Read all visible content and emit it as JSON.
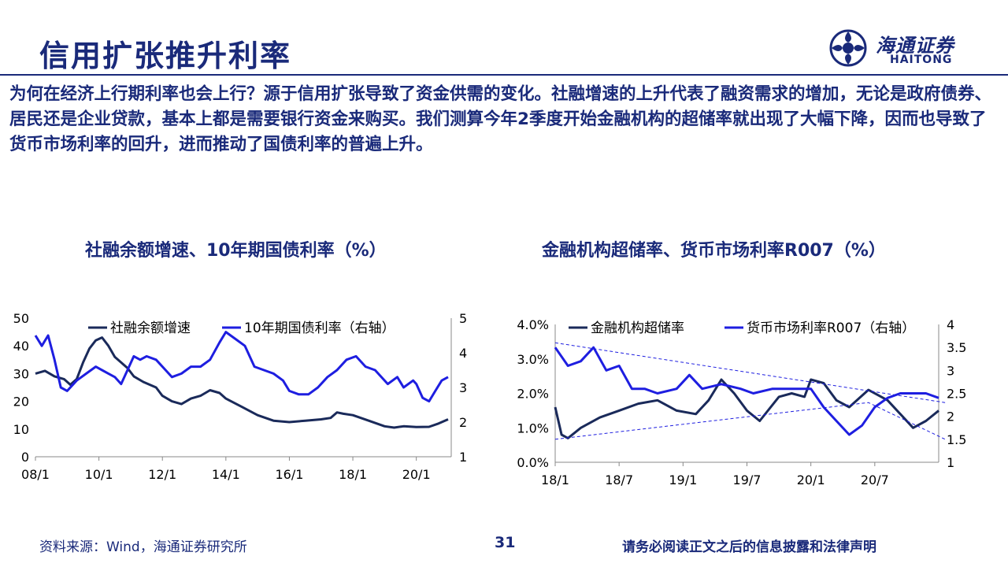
{
  "header": {
    "title": "信用扩张推升利率",
    "logo": {
      "cn": "海通证券",
      "en": "HAITONG",
      "icon": "haitong-logo-icon",
      "color": "#1a2a7a"
    }
  },
  "body_text": "为何在经济上行期利率也会上行？源于信用扩张导致了资金供需的变化。社融增速的上升代表了融资需求的增加，无论是政府债券、居民还是企业贷款，基本上都是需要银行资金来购买。我们测算今年2季度开始金融机构的超储率就出现了大幅下降，因而也导致了货币市场利率的回升，进而推动了国债利率的普遍上升。",
  "chart_titles": {
    "left": "社融余额增速、10年期国债利率（%）",
    "right": "金融机构超储率、货币市场利率R007（%）"
  },
  "colors": {
    "dark_series": "#1a2a5a",
    "light_series": "#1e1ee0",
    "text": "#1a2a7a"
  },
  "chart_data": [
    {
      "type": "line",
      "x_ticks": [
        "08/1",
        "10/1",
        "12/1",
        "14/1",
        "16/1",
        "18/1",
        "20/1"
      ],
      "y_left_ticks": [
        "0",
        "10",
        "20",
        "30",
        "40",
        "50"
      ],
      "y_right_ticks": [
        "1",
        "2",
        "3",
        "4",
        "5"
      ],
      "ylim_left": [
        0,
        50
      ],
      "ylim_right": [
        1,
        5
      ],
      "x_range": [
        2008.0,
        2021.1
      ],
      "legend_position": "top",
      "grid": false,
      "series": [
        {
          "name": "社融余额增速",
          "axis": "left",
          "points": [
            [
              2008.0,
              30
            ],
            [
              2008.3,
              31
            ],
            [
              2008.6,
              29
            ],
            [
              2008.9,
              28
            ],
            [
              2009.1,
              26
            ],
            [
              2009.3,
              28
            ],
            [
              2009.5,
              34
            ],
            [
              2009.7,
              39
            ],
            [
              2009.9,
              42
            ],
            [
              2010.1,
              43
            ],
            [
              2010.3,
              40
            ],
            [
              2010.5,
              36
            ],
            [
              2010.7,
              34
            ],
            [
              2010.9,
              32
            ],
            [
              2011.1,
              29
            ],
            [
              2011.4,
              27
            ],
            [
              2011.8,
              25
            ],
            [
              2012.0,
              22
            ],
            [
              2012.3,
              20
            ],
            [
              2012.6,
              19
            ],
            [
              2012.9,
              21
            ],
            [
              2013.2,
              22
            ],
            [
              2013.5,
              24
            ],
            [
              2013.8,
              23
            ],
            [
              2014.0,
              21
            ],
            [
              2014.5,
              18
            ],
            [
              2015.0,
              15
            ],
            [
              2015.5,
              13
            ],
            [
              2016.0,
              12.5
            ],
            [
              2016.5,
              13
            ],
            [
              2017.0,
              13.5
            ],
            [
              2017.3,
              14
            ],
            [
              2017.5,
              16
            ],
            [
              2017.7,
              15.5
            ],
            [
              2018.0,
              15
            ],
            [
              2018.5,
              13
            ],
            [
              2019.0,
              11
            ],
            [
              2019.3,
              10.5
            ],
            [
              2019.6,
              11
            ],
            [
              2020.0,
              10.7
            ],
            [
              2020.4,
              10.8
            ],
            [
              2020.7,
              12
            ],
            [
              2021.0,
              13.5
            ]
          ]
        },
        {
          "name": "10年期国债利率（右轴）",
          "axis": "right",
          "points": [
            [
              2008.0,
              4.5
            ],
            [
              2008.2,
              4.2
            ],
            [
              2008.4,
              4.5
            ],
            [
              2008.6,
              3.8
            ],
            [
              2008.8,
              3.0
            ],
            [
              2009.0,
              2.9
            ],
            [
              2009.3,
              3.2
            ],
            [
              2009.6,
              3.4
            ],
            [
              2009.9,
              3.6
            ],
            [
              2010.1,
              3.5
            ],
            [
              2010.3,
              3.4
            ],
            [
              2010.5,
              3.3
            ],
            [
              2010.7,
              3.1
            ],
            [
              2010.9,
              3.5
            ],
            [
              2011.1,
              3.9
            ],
            [
              2011.3,
              3.8
            ],
            [
              2011.5,
              3.9
            ],
            [
              2011.8,
              3.8
            ],
            [
              2012.1,
              3.5
            ],
            [
              2012.3,
              3.3
            ],
            [
              2012.6,
              3.4
            ],
            [
              2012.9,
              3.6
            ],
            [
              2013.2,
              3.6
            ],
            [
              2013.5,
              3.8
            ],
            [
              2013.8,
              4.3
            ],
            [
              2014.0,
              4.6
            ],
            [
              2014.3,
              4.4
            ],
            [
              2014.6,
              4.2
            ],
            [
              2014.9,
              3.6
            ],
            [
              2015.2,
              3.5
            ],
            [
              2015.5,
              3.4
            ],
            [
              2015.8,
              3.2
            ],
            [
              2016.0,
              2.9
            ],
            [
              2016.3,
              2.8
            ],
            [
              2016.6,
              2.8
            ],
            [
              2016.9,
              3.0
            ],
            [
              2017.2,
              3.3
            ],
            [
              2017.5,
              3.5
            ],
            [
              2017.8,
              3.8
            ],
            [
              2018.1,
              3.9
            ],
            [
              2018.4,
              3.6
            ],
            [
              2018.7,
              3.5
            ],
            [
              2018.9,
              3.3
            ],
            [
              2019.1,
              3.1
            ],
            [
              2019.4,
              3.3
            ],
            [
              2019.6,
              3.0
            ],
            [
              2019.9,
              3.2
            ],
            [
              2020.0,
              3.1
            ],
            [
              2020.2,
              2.7
            ],
            [
              2020.4,
              2.6
            ],
            [
              2020.6,
              2.9
            ],
            [
              2020.8,
              3.2
            ],
            [
              2021.0,
              3.3
            ]
          ]
        }
      ]
    },
    {
      "type": "line",
      "x_ticks": [
        "18/1",
        "18/7",
        "19/1",
        "19/7",
        "20/1",
        "20/7"
      ],
      "y_left_ticks": [
        "0.0%",
        "1.0%",
        "2.0%",
        "3.0%",
        "4.0%"
      ],
      "y_right_ticks": [
        "1",
        "1.5",
        "2",
        "2.5",
        "3",
        "3.5",
        "4"
      ],
      "ylim_left": [
        0,
        4
      ],
      "ylim_right": [
        1,
        4
      ],
      "x_range": [
        2018.0,
        2021.0
      ],
      "legend_position": "top",
      "grid": false,
      "series": [
        {
          "name": "金融机构超储率",
          "axis": "left",
          "points": [
            [
              2018.0,
              1.6
            ],
            [
              2018.05,
              0.8
            ],
            [
              2018.1,
              0.7
            ],
            [
              2018.2,
              1.0
            ],
            [
              2018.35,
              1.3
            ],
            [
              2018.5,
              1.5
            ],
            [
              2018.65,
              1.7
            ],
            [
              2018.8,
              1.8
            ],
            [
              2018.95,
              1.5
            ],
            [
              2019.1,
              1.4
            ],
            [
              2019.2,
              1.8
            ],
            [
              2019.3,
              2.4
            ],
            [
              2019.4,
              2.0
            ],
            [
              2019.5,
              1.5
            ],
            [
              2019.6,
              1.2
            ],
            [
              2019.75,
              1.9
            ],
            [
              2019.85,
              2.0
            ],
            [
              2019.95,
              1.9
            ],
            [
              2020.0,
              2.4
            ],
            [
              2020.1,
              2.3
            ],
            [
              2020.2,
              1.8
            ],
            [
              2020.3,
              1.6
            ],
            [
              2020.45,
              2.1
            ],
            [
              2020.6,
              1.8
            ],
            [
              2020.7,
              1.4
            ],
            [
              2020.8,
              1.0
            ],
            [
              2020.9,
              1.2
            ],
            [
              2021.0,
              1.5
            ]
          ]
        },
        {
          "name": "货币市场利率R007（右轴）",
          "axis": "right",
          "points": [
            [
              2018.0,
              3.5
            ],
            [
              2018.1,
              3.1
            ],
            [
              2018.2,
              3.2
            ],
            [
              2018.3,
              3.5
            ],
            [
              2018.4,
              3.0
            ],
            [
              2018.5,
              3.1
            ],
            [
              2018.6,
              2.6
            ],
            [
              2018.7,
              2.6
            ],
            [
              2018.8,
              2.5
            ],
            [
              2018.95,
              2.6
            ],
            [
              2019.05,
              2.9
            ],
            [
              2019.15,
              2.6
            ],
            [
              2019.3,
              2.7
            ],
            [
              2019.45,
              2.6
            ],
            [
              2019.55,
              2.5
            ],
            [
              2019.7,
              2.6
            ],
            [
              2019.85,
              2.6
            ],
            [
              2020.0,
              2.6
            ],
            [
              2020.1,
              2.2
            ],
            [
              2020.2,
              1.9
            ],
            [
              2020.3,
              1.6
            ],
            [
              2020.4,
              1.8
            ],
            [
              2020.5,
              2.2
            ],
            [
              2020.6,
              2.4
            ],
            [
              2020.7,
              2.5
            ],
            [
              2020.8,
              2.5
            ],
            [
              2020.9,
              2.5
            ],
            [
              2021.0,
              2.4
            ]
          ]
        },
        {
          "name": "",
          "axis": "right",
          "style": "dashed",
          "points": [
            [
              2018.0,
              3.6
            ],
            [
              2021.05,
              2.3
            ]
          ]
        },
        {
          "name": "",
          "axis": "right",
          "style": "dashed",
          "points": [
            [
              2018.0,
              1.5
            ],
            [
              2020.45,
              2.3
            ],
            [
              2021.05,
              1.5
            ]
          ]
        }
      ]
    }
  ],
  "footer": {
    "source": "资料来源：Wind，海通证券研究所",
    "page": "31",
    "disclaimer": "请务必阅读正文之后的信息披露和法律声明"
  }
}
